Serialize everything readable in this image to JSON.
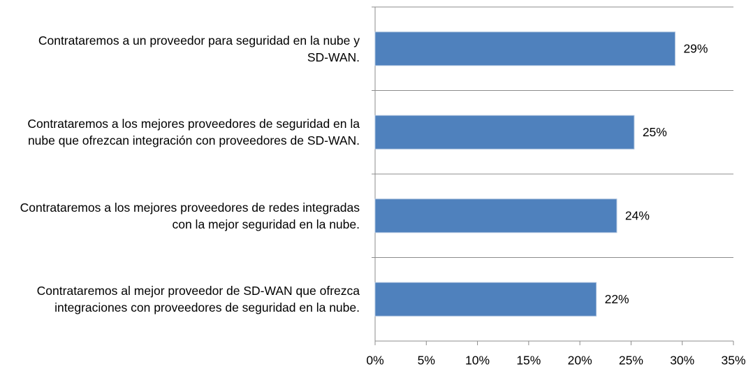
{
  "chart_data": {
    "type": "barh",
    "categories": [
      "Contrataremos a un proveedor para seguridad en la nube y SD-WAN.",
      "Contrataremos a los mejores proveedores de seguridad en la nube que ofrezcan integración con proveedores de SD-WAN.",
      "Contrataremos a los mejores proveedores de redes integradas con la mejor seguridad en la nube.",
      "Contrataremos al mejor proveedor de SD-WAN que ofrezca integraciones con proveedores de seguridad en la nube."
    ],
    "values": [
      29.3,
      25.3,
      23.6,
      21.6
    ],
    "value_labels": [
      "29%",
      "25%",
      "24%",
      "22%"
    ],
    "color": "#4f81bd",
    "xlim": [
      0,
      35
    ],
    "xticks": [
      {
        "value": 0,
        "label": "0%"
      },
      {
        "value": 5,
        "label": "5%"
      },
      {
        "value": 10,
        "label": "10%"
      },
      {
        "value": 15,
        "label": "15%"
      },
      {
        "value": 20,
        "label": "20%"
      },
      {
        "value": 25,
        "label": "25%"
      },
      {
        "value": 30,
        "label": "30%"
      },
      {
        "value": 35,
        "label": "35%"
      }
    ]
  }
}
